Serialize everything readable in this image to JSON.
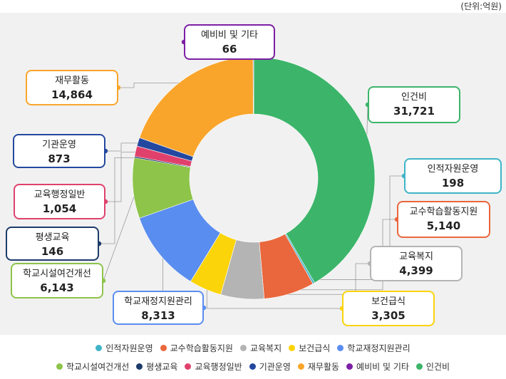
{
  "unit_label": "(단위:억원)",
  "chart_data": {
    "type": "pie",
    "style": "donut",
    "unit": "억원",
    "slices": [
      {
        "name": "인건비",
        "value": 31721,
        "value_label": "31,721",
        "color": "#3cb56a"
      },
      {
        "name": "인적자원운영",
        "value": 198,
        "value_label": "198",
        "color": "#3fb4c7"
      },
      {
        "name": "교수학습활동지원",
        "value": 5140,
        "value_label": "5,140",
        "color": "#ea663c"
      },
      {
        "name": "교육복지",
        "value": 4399,
        "value_label": "4,399",
        "color": "#b4b4b4"
      },
      {
        "name": "보건급식",
        "value": 3305,
        "value_label": "3,305",
        "color": "#fbd40a"
      },
      {
        "name": "학교재정지원관리",
        "value": 8313,
        "value_label": "8,313",
        "color": "#5a8df0"
      },
      {
        "name": "학교시설여건개선",
        "value": 6143,
        "value_label": "6,143",
        "color": "#8dc449"
      },
      {
        "name": "평생교육",
        "value": 146,
        "value_label": "146",
        "color": "#1d3a6b"
      },
      {
        "name": "교육행정일반",
        "value": 1054,
        "value_label": "1,054",
        "color": "#e0416c"
      },
      {
        "name": "기관운영",
        "value": 873,
        "value_label": "873",
        "color": "#2448a0"
      },
      {
        "name": "재무활동",
        "value": 14864,
        "value_label": "14,864",
        "color": "#f9a52b"
      },
      {
        "name": "예비비 및 기타",
        "value": 66,
        "value_label": "66",
        "color": "#7d1fa5"
      }
    ],
    "legend": {
      "placement": "bottom",
      "rows": [
        [
          "인적자원운영",
          "교수학습활동지원",
          "교육복지",
          "보건급식",
          "학교재정지원관리"
        ],
        [
          "학교시설여건개선",
          "평생교육",
          "교육행정일반",
          "기관운영",
          "재무활동",
          "예비비 및 기타",
          "인건비"
        ]
      ]
    }
  }
}
